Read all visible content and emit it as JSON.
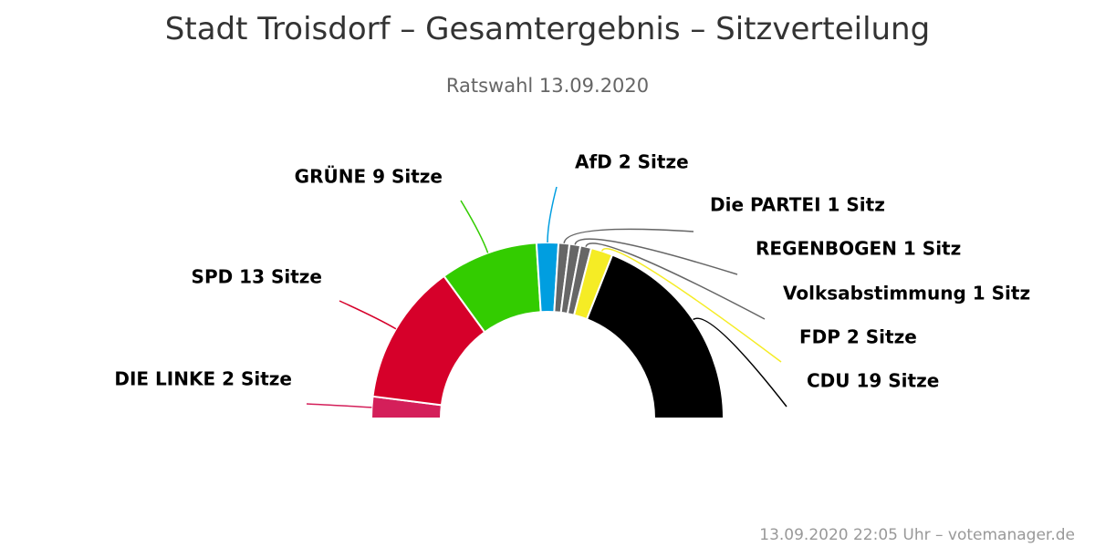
{
  "title": "Stadt Troisdorf – Gesamtergebnis – Sitzverteilung",
  "subtitle": "Ratswahl 13.09.2020",
  "credit": "13.09.2020 22:05 Uhr – votemanager.de",
  "chart_data": {
    "type": "parliament-semicircle",
    "unit": "Sitze",
    "total_seats": 50,
    "parties": [
      {
        "name": "DIE LINKE",
        "seats": 2,
        "label": "DIE LINKE 2 Sitze",
        "color": "#d41f5a"
      },
      {
        "name": "SPD",
        "seats": 13,
        "label": "SPD 13 Sitze",
        "color": "#d6002a"
      },
      {
        "name": "GRÜNE",
        "seats": 9,
        "label": "GRÜNE 9 Sitze",
        "color": "#33cc00"
      },
      {
        "name": "AfD",
        "seats": 2,
        "label": "AfD 2 Sitze",
        "color": "#009ee0"
      },
      {
        "name": "Die PARTEI",
        "seats": 1,
        "label": "Die PARTEI 1 Sitz",
        "color": "#666666"
      },
      {
        "name": "REGENBOGEN",
        "seats": 1,
        "label": "REGENBOGEN 1 Sitz",
        "color": "#666666"
      },
      {
        "name": "Volksabstimmung",
        "seats": 1,
        "label": "Volksabstimmung 1 Sitz",
        "color": "#666666"
      },
      {
        "name": "FDP",
        "seats": 2,
        "label": "FDP 2 Sitze",
        "color": "#f5ec25"
      },
      {
        "name": "CDU",
        "seats": 19,
        "label": "CDU 19 Sitze",
        "color": "#000000"
      }
    ]
  }
}
